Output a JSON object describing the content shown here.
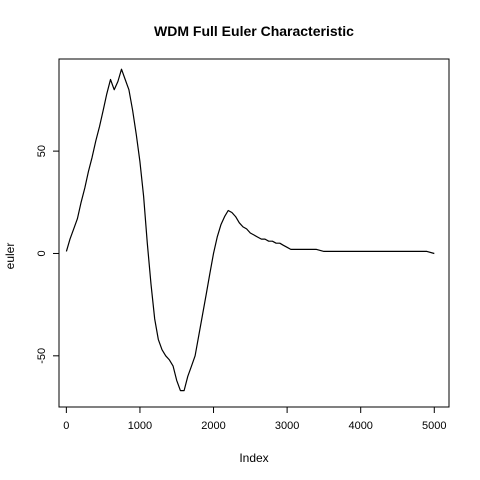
{
  "chart_data": {
    "type": "line",
    "title": "WDM Full Euler Characteristic",
    "xlabel": "Index",
    "ylabel": "euler",
    "xlim": [
      -100,
      5200
    ],
    "ylim": [
      -75,
      95
    ],
    "x_ticks": [
      0,
      1000,
      2000,
      3000,
      4000,
      5000
    ],
    "x_tick_labels": [
      "0",
      "1000",
      "2000",
      "3000",
      "4000",
      "5000"
    ],
    "y_ticks": [
      -50,
      0,
      50
    ],
    "y_tick_labels": [
      "-50",
      "0",
      "50"
    ],
    "grid": false,
    "legend": "none",
    "line_color": "#000000",
    "series": [
      {
        "x": [
          0,
          50,
          100,
          150,
          200,
          250,
          300,
          350,
          400,
          450,
          500,
          550,
          600,
          650,
          700,
          750,
          800,
          850,
          900,
          950,
          1000,
          1050,
          1100,
          1150,
          1200,
          1250,
          1300,
          1350,
          1400,
          1450,
          1500,
          1550,
          1600,
          1650,
          1700,
          1750,
          1800,
          1850,
          1900,
          1950,
          2000,
          2050,
          2100,
          2150,
          2200,
          2250,
          2300,
          2350,
          2400,
          2450,
          2500,
          2550,
          2600,
          2650,
          2700,
          2750,
          2800,
          2850,
          2900,
          2950,
          3000,
          3050,
          3100,
          3200,
          3300,
          3400,
          3500,
          3600,
          3700,
          3800,
          3900,
          4000,
          4100,
          4200,
          4300,
          4400,
          4500,
          4600,
          4700,
          4800,
          4900,
          5000
        ],
        "values": [
          1,
          7,
          12,
          17,
          25,
          32,
          40,
          47,
          55,
          62,
          70,
          78,
          85,
          80,
          84,
          90,
          85,
          80,
          70,
          58,
          45,
          28,
          5,
          -15,
          -32,
          -42,
          -47,
          -50,
          -52,
          -55,
          -62,
          -67,
          -67,
          -60,
          -55,
          -50,
          -40,
          -30,
          -20,
          -10,
          0,
          8,
          14,
          18,
          21,
          20,
          18,
          15,
          13,
          12,
          10,
          9,
          8,
          7,
          7,
          6,
          6,
          5,
          5,
          4,
          3,
          2,
          2,
          2,
          2,
          2,
          1,
          1,
          1,
          1,
          1,
          1,
          1,
          1,
          1,
          1,
          1,
          1,
          1,
          1,
          1,
          0
        ]
      }
    ]
  }
}
